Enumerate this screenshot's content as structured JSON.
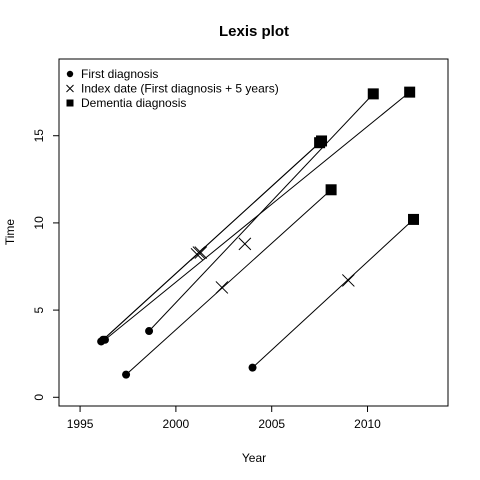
{
  "chart_data": {
    "type": "line",
    "title": "Lexis plot",
    "xlabel": "Year",
    "ylabel": "Time",
    "xlim": [
      1993.9,
      2014.2
    ],
    "ylim": [
      -0.5,
      19.4
    ],
    "xticks": [
      1995,
      2000,
      2005,
      2010
    ],
    "yticks": [
      0,
      5,
      10,
      15
    ],
    "grid": false,
    "legend": {
      "position": "top-left",
      "entries": [
        {
          "symbol": "dot",
          "label": "First diagnosis"
        },
        {
          "symbol": "cross",
          "label": "Index date (First diagnosis + 5 years)"
        },
        {
          "symbol": "square",
          "label": "Dementia diagnosis"
        }
      ]
    },
    "series": [
      {
        "first_diagnosis": [
          1996.1,
          3.2
        ],
        "index_date": [
          2001.1,
          8.2
        ],
        "dementia_diagnosis": [
          2007.5,
          14.6
        ]
      },
      {
        "first_diagnosis": [
          1996.2,
          3.3
        ],
        "index_date": [
          2001.2,
          8.3
        ],
        "dementia_diagnosis": [
          2007.6,
          14.7
        ]
      },
      {
        "first_diagnosis": [
          1998.6,
          3.8
        ],
        "index_date": [
          2003.6,
          8.8
        ],
        "dementia_diagnosis": [
          2010.3,
          17.4
        ]
      },
      {
        "first_diagnosis": [
          1997.4,
          1.3
        ],
        "index_date": [
          2002.4,
          6.3
        ],
        "dementia_diagnosis": [
          2008.1,
          11.9
        ]
      },
      {
        "first_diagnosis": [
          2004.0,
          1.7
        ],
        "index_date": [
          2009.0,
          6.7
        ],
        "dementia_diagnosis": [
          2012.4,
          10.2
        ]
      },
      {
        "first_diagnosis": [
          1996.3,
          3.3
        ],
        "index_date": [
          2001.3,
          8.3
        ],
        "dementia_diagnosis": [
          2012.2,
          17.5
        ]
      }
    ]
  }
}
